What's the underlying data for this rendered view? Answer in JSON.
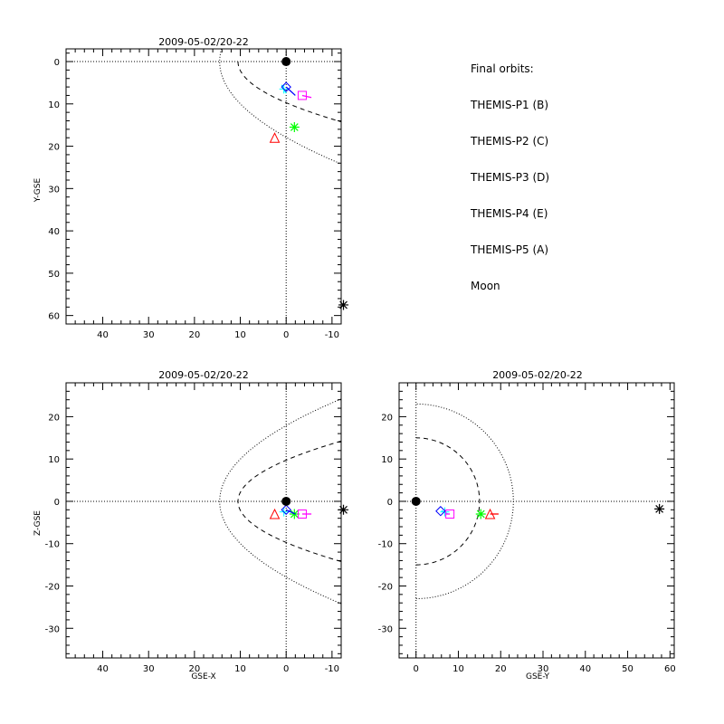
{
  "legend": {
    "title": "Final orbits:",
    "items": [
      {
        "label": "THEMIS-P1 (B)",
        "color": "#ff0000"
      },
      {
        "label": "THEMIS-P2 (C)",
        "color": "#00ff00"
      },
      {
        "label": "THEMIS-P3 (D)",
        "color": "#00ffff"
      },
      {
        "label": "THEMIS-P4 (E)",
        "color": "#0000ff"
      },
      {
        "label": "THEMIS-P5 (A)",
        "color": "#ff00ff"
      },
      {
        "label": "Moon",
        "color": "#000000"
      }
    ]
  },
  "chart_data": [
    {
      "id": "xy",
      "type": "scatter",
      "title": "2009-05-02/20-22",
      "xlabel": "",
      "ylabel": "Y-GSE",
      "xlim": [
        48,
        -12
      ],
      "ylim": [
        -3,
        62
      ],
      "y_inverted": true,
      "xticks": [
        40,
        30,
        20,
        10,
        0,
        -10
      ],
      "yticks": [
        0,
        10,
        20,
        30,
        40,
        50,
        60
      ],
      "points": [
        {
          "name": "THEMIS-P1 (B)",
          "marker": "triangle",
          "color": "#ff0000",
          "x": 2.5,
          "y": 18,
          "trail": []
        },
        {
          "name": "THEMIS-P2 (C)",
          "marker": "asterisk",
          "color": "#00ff00",
          "x": -1.8,
          "y": 15.5,
          "trail": []
        },
        {
          "name": "THEMIS-P3 (D)",
          "marker": "cross",
          "color": "#00ffff",
          "x": 0.5,
          "y": 6.5,
          "trail": [
            [
              1.0,
              5.5
            ],
            [
              0.0,
              7.5
            ]
          ]
        },
        {
          "name": "THEMIS-P4 (E)",
          "marker": "diamond",
          "color": "#0000ff",
          "x": 0,
          "y": 6,
          "trail": [
            [
              0,
              6
            ],
            [
              -2,
              8
            ]
          ]
        },
        {
          "name": "THEMIS-P5 (A)",
          "marker": "square",
          "color": "#ff00ff",
          "x": -3.5,
          "y": 8,
          "trail": [
            [
              -3.5,
              8
            ],
            [
              -5.5,
              8.5
            ]
          ]
        },
        {
          "name": "Moon",
          "marker": "asterisk",
          "color": "#000000",
          "x": -12.5,
          "y": 57.5,
          "trail": []
        },
        {
          "name": "Earth",
          "marker": "dot",
          "color": "#000000",
          "x": 0,
          "y": 0,
          "trail": []
        }
      ],
      "curves": [
        {
          "style": "dashed",
          "vertex": 10.5,
          "k": 1.5,
          "range": [
            0,
            21.6
          ]
        },
        {
          "style": "dotted",
          "vertex": 14.5,
          "k": 2.35,
          "range": [
            -3,
            42
          ]
        }
      ],
      "circles": []
    },
    {
      "id": "xz",
      "type": "scatter",
      "title": "2009-05-02/20-22",
      "xlabel": "GSE-X",
      "ylabel": "Z-GSE",
      "xlim": [
        48,
        -12
      ],
      "ylim": [
        -37,
        28
      ],
      "y_inverted": false,
      "xticks": [
        40,
        30,
        20,
        10,
        0,
        -10
      ],
      "yticks": [
        20,
        10,
        0,
        -10,
        -20,
        -30
      ],
      "points": [
        {
          "name": "THEMIS-P1 (B)",
          "marker": "triangle",
          "color": "#ff0000",
          "x": 2.5,
          "y": -3,
          "trail": []
        },
        {
          "name": "THEMIS-P2 (C)",
          "marker": "asterisk",
          "color": "#00ff00",
          "x": -1.8,
          "y": -3,
          "trail": []
        },
        {
          "name": "THEMIS-P3 (D)",
          "marker": "cross",
          "color": "#00ffff",
          "x": 0.5,
          "y": -2.5,
          "trail": [
            [
              1.0,
              -2.0
            ],
            [
              0.0,
              -3.0
            ]
          ]
        },
        {
          "name": "THEMIS-P4 (E)",
          "marker": "diamond",
          "color": "#0000ff",
          "x": 0,
          "y": -2,
          "trail": [
            [
              0,
              -2
            ],
            [
              -2,
              -3
            ]
          ]
        },
        {
          "name": "THEMIS-P5 (A)",
          "marker": "square",
          "color": "#ff00ff",
          "x": -3.5,
          "y": -3,
          "trail": [
            [
              -3.5,
              -3
            ],
            [
              -5.5,
              -3
            ]
          ]
        },
        {
          "name": "Moon",
          "marker": "asterisk",
          "color": "#000000",
          "x": -12.5,
          "y": -2,
          "trail": []
        },
        {
          "name": "Earth",
          "marker": "dot",
          "color": "#000000",
          "x": 0,
          "y": 0,
          "trail": []
        }
      ],
      "curves": [
        {
          "style": "dashed",
          "vertex": 10.5,
          "k": 1.5,
          "range": [
            -21.6,
            21.6
          ]
        },
        {
          "style": "dotted",
          "vertex": 14.5,
          "k": 2.35,
          "range": [
            -34.5,
            28
          ]
        }
      ],
      "circles": []
    },
    {
      "id": "yz",
      "type": "scatter",
      "title": "2009-05-02/20-22",
      "xlabel": "GSE-Y",
      "ylabel": "",
      "xlim": [
        -4,
        61
      ],
      "ylim": [
        -37,
        28
      ],
      "y_inverted": false,
      "xticks": [
        0,
        10,
        20,
        30,
        40,
        50,
        60
      ],
      "yticks": [
        20,
        10,
        0,
        -10,
        -20,
        -30
      ],
      "points": [
        {
          "name": "THEMIS-P1 (B)",
          "marker": "triangle",
          "color": "#ff0000",
          "x": 17.5,
          "y": -3,
          "trail": [
            [
              17.5,
              -3
            ],
            [
              19.5,
              -3
            ]
          ]
        },
        {
          "name": "THEMIS-P2 (C)",
          "marker": "asterisk",
          "color": "#00ff00",
          "x": 15.3,
          "y": -3,
          "trail": []
        },
        {
          "name": "THEMIS-P3 (D)",
          "marker": "cross",
          "color": "#00ffff",
          "x": 6.8,
          "y": -2.5,
          "trail": [
            [
              6.0,
              -2.2
            ],
            [
              7.5,
              -3.0
            ]
          ]
        },
        {
          "name": "THEMIS-P4 (E)",
          "marker": "diamond",
          "color": "#0000ff",
          "x": 5.8,
          "y": -2.3,
          "trail": []
        },
        {
          "name": "THEMIS-P5 (A)",
          "marker": "square",
          "color": "#ff00ff",
          "x": 8,
          "y": -3,
          "trail": [
            [
              7,
              -3
            ],
            [
              8,
              -3
            ]
          ]
        },
        {
          "name": "Moon",
          "marker": "asterisk",
          "color": "#000000",
          "x": 57.5,
          "y": -1.8,
          "trail": []
        },
        {
          "name": "Earth",
          "marker": "dot",
          "color": "#000000",
          "x": 0,
          "y": 0,
          "trail": []
        }
      ],
      "curves": [],
      "circles": [
        {
          "style": "dashed",
          "r": 15,
          "xmin": 0
        },
        {
          "style": "dotted",
          "r": 23,
          "xmin": 0
        }
      ]
    }
  ]
}
